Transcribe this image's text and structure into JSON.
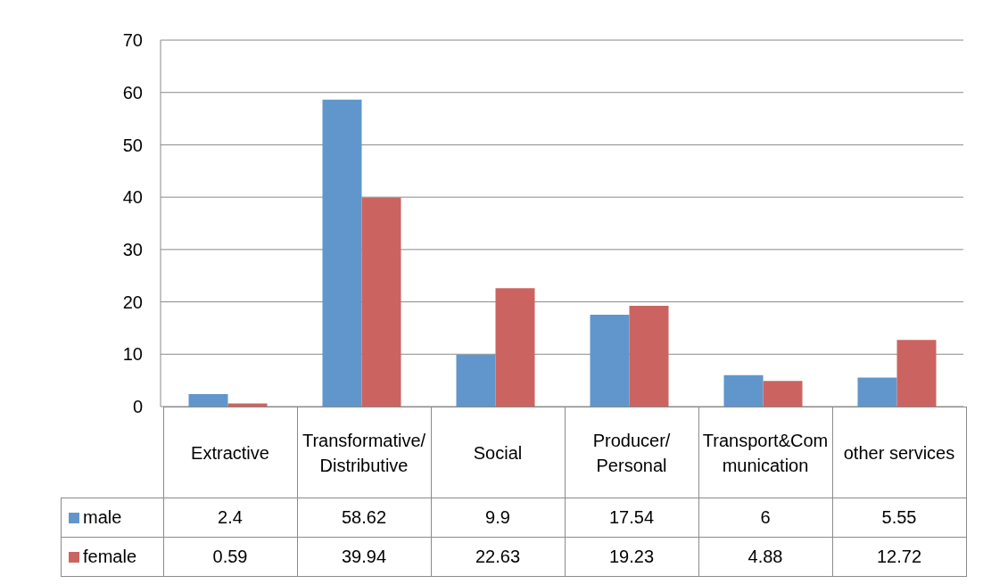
{
  "chart_data": {
    "type": "bar",
    "categories": [
      "Extractive",
      "Transformative/ Distributive",
      "Social",
      "Producer/ Personal",
      "Transport&Communication",
      "other services"
    ],
    "series": [
      {
        "name": "male",
        "color": "#6096cc",
        "values": [
          2.4,
          58.62,
          9.9,
          17.54,
          6,
          5.55
        ]
      },
      {
        "name": "female",
        "color": "#cb6460",
        "values": [
          0.59,
          39.94,
          22.63,
          19.23,
          4.88,
          12.72
        ]
      }
    ],
    "ylim": [
      0,
      70
    ],
    "yticks": [
      0,
      10,
      20,
      30,
      40,
      50,
      60,
      70
    ],
    "grid": "y",
    "legend": "bottom",
    "data_labels": true
  }
}
